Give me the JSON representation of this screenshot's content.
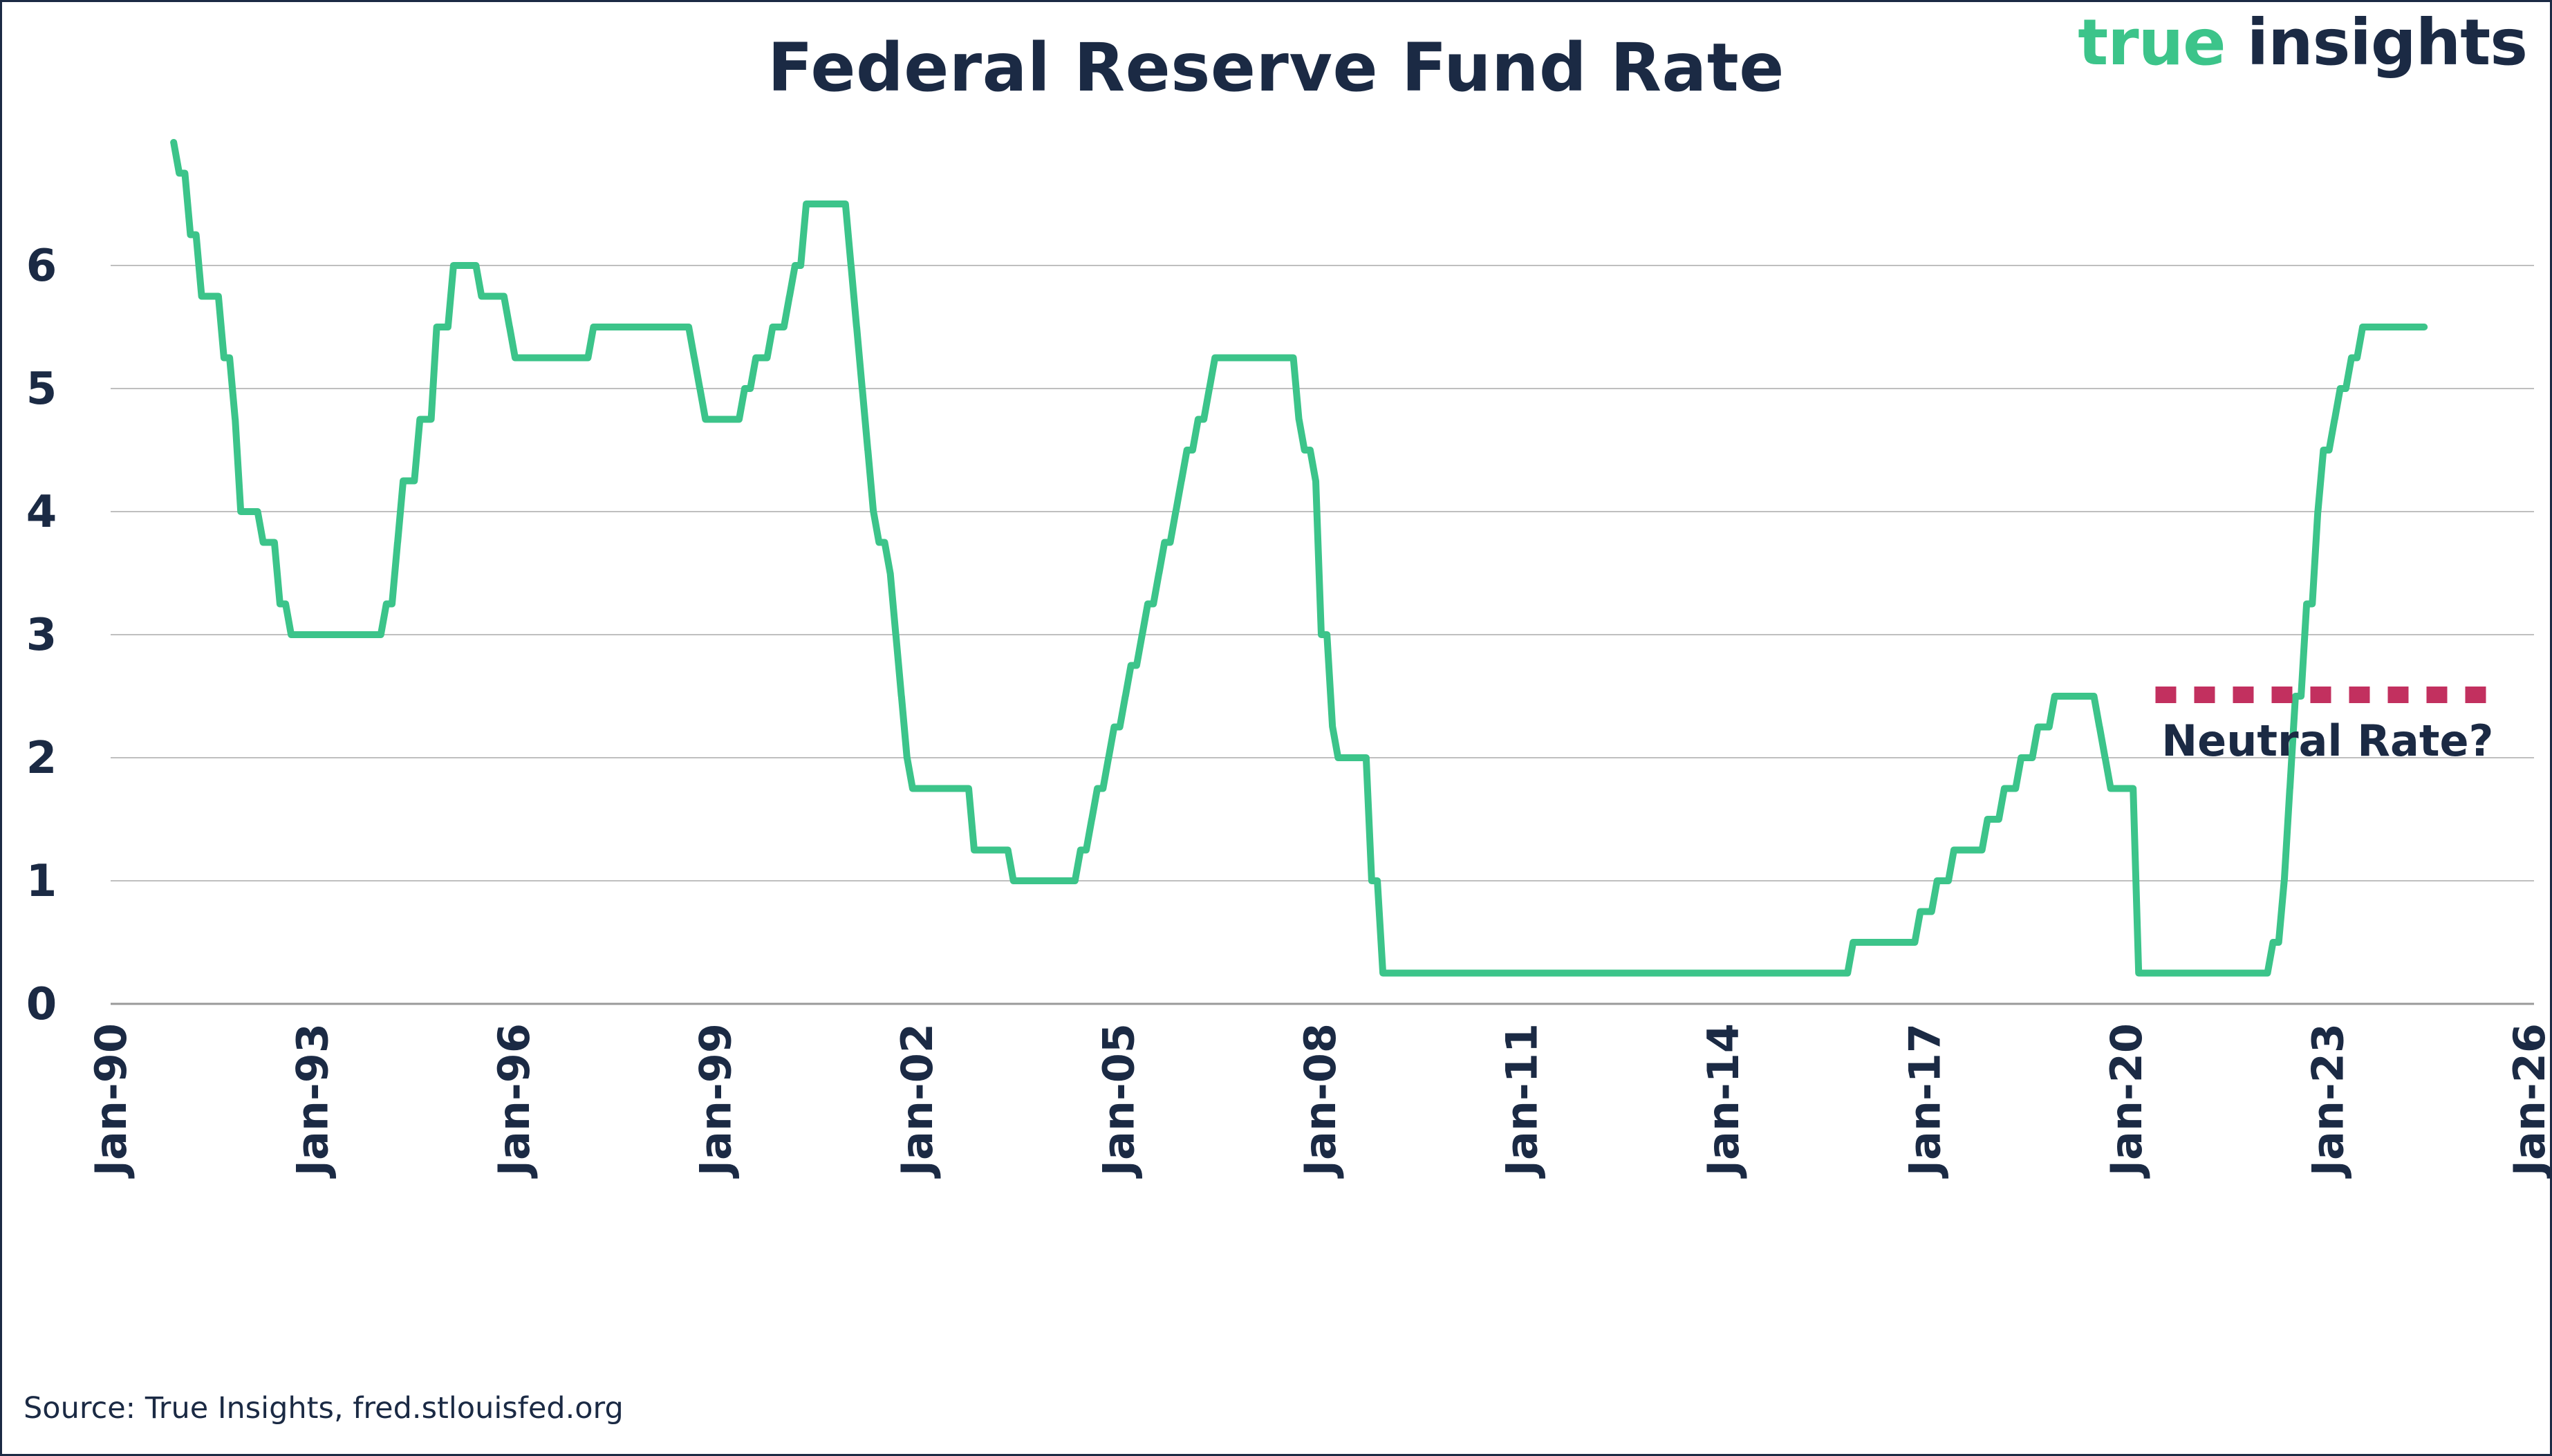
{
  "title": "Federal Reserve Fund Rate",
  "logo": {
    "word1": "true",
    "word2": "insights"
  },
  "source": "Source: True Insights, fred.stlouisfed.org",
  "colors": {
    "line": "#3cc48a",
    "neutral": "#c2305f",
    "text": "#1b2a44",
    "grid": "#bfbfbf"
  },
  "chart_data": {
    "type": "line",
    "title": "Federal Reserve Fund Rate",
    "xlabel": "",
    "ylabel": "",
    "x_ticks": [
      "Jan-90",
      "Jan-93",
      "Jan-96",
      "Jan-99",
      "Jan-02",
      "Jan-05",
      "Jan-08",
      "Jan-11",
      "Jan-14",
      "Jan-17",
      "Jan-20",
      "Jan-23",
      "Jan-26"
    ],
    "y_ticks": [
      "0",
      "1",
      "2",
      "3",
      "4",
      "5",
      "6"
    ],
    "xlim": [
      "1990-01",
      "2026-01"
    ],
    "ylim": [
      0,
      7
    ],
    "grid": "horizontal",
    "series": [
      {
        "x": [
          "1990-12",
          "1991-01",
          "1991-03",
          "1991-05",
          "1991-09",
          "1991-11",
          "1991-12",
          "1992-04",
          "1992-07",
          "1992-09",
          "1994-02",
          "1994-04",
          "1994-05",
          "1994-08",
          "1994-11",
          "1995-02",
          "1995-07",
          "1995-12",
          "1996-01",
          "1997-03",
          "1998-09",
          "1998-10",
          "1998-11",
          "1999-06",
          "1999-08",
          "1999-11",
          "2000-02",
          "2000-03",
          "2000-05",
          "2001-01",
          "2001-02",
          "2001-03",
          "2001-04",
          "2001-05",
          "2001-06",
          "2001-08",
          "2001-09",
          "2001-10",
          "2001-11",
          "2001-12",
          "2002-11",
          "2003-06",
          "2004-06",
          "2004-08",
          "2004-09",
          "2004-11",
          "2004-12",
          "2005-02",
          "2005-03",
          "2005-05",
          "2005-06",
          "2005-08",
          "2005-09",
          "2005-11",
          "2005-12",
          "2006-01",
          "2006-03",
          "2006-05",
          "2006-06",
          "2007-09",
          "2007-10",
          "2007-12",
          "2008-01",
          "2008-03",
          "2008-04",
          "2008-10",
          "2008-12",
          "2015-12",
          "2016-12",
          "2017-03",
          "2017-06",
          "2017-12",
          "2018-03",
          "2018-06",
          "2018-09",
          "2018-12",
          "2019-08",
          "2019-09",
          "2019-10",
          "2020-03",
          "2022-03",
          "2022-05",
          "2022-06",
          "2022-07",
          "2022-09",
          "2022-11",
          "2022-12",
          "2023-02",
          "2023-03",
          "2023-05",
          "2023-07",
          "2024-06"
        ],
        "values": [
          7.0,
          6.75,
          6.25,
          5.75,
          5.25,
          4.75,
          4.0,
          3.75,
          3.25,
          3.0,
          3.25,
          3.75,
          4.25,
          4.75,
          5.5,
          6.0,
          5.75,
          5.5,
          5.25,
          5.5,
          5.25,
          5.0,
          4.75,
          5.0,
          5.25,
          5.5,
          5.75,
          6.0,
          6.5,
          6.0,
          5.5,
          5.0,
          4.5,
          4.0,
          3.75,
          3.5,
          3.0,
          2.5,
          2.0,
          1.75,
          1.25,
          1.0,
          1.25,
          1.5,
          1.75,
          2.0,
          2.25,
          2.5,
          2.75,
          3.0,
          3.25,
          3.5,
          3.75,
          4.0,
          4.25,
          4.5,
          4.75,
          5.0,
          5.25,
          4.75,
          4.5,
          4.25,
          3.0,
          2.25,
          2.0,
          1.0,
          0.25,
          0.5,
          0.75,
          1.0,
          1.25,
          1.5,
          1.75,
          2.0,
          2.25,
          2.5,
          2.25,
          2.0,
          1.75,
          0.25,
          0.5,
          1.0,
          1.75,
          2.5,
          3.25,
          4.0,
          4.5,
          4.75,
          5.0,
          5.25,
          5.5,
          5.5
        ]
      }
    ],
    "annotations": [
      {
        "type": "dotted-line",
        "label": "Neutral Rate?",
        "y": 2.5,
        "x_start": "2020-06",
        "x_end": "2025-06"
      }
    ]
  }
}
